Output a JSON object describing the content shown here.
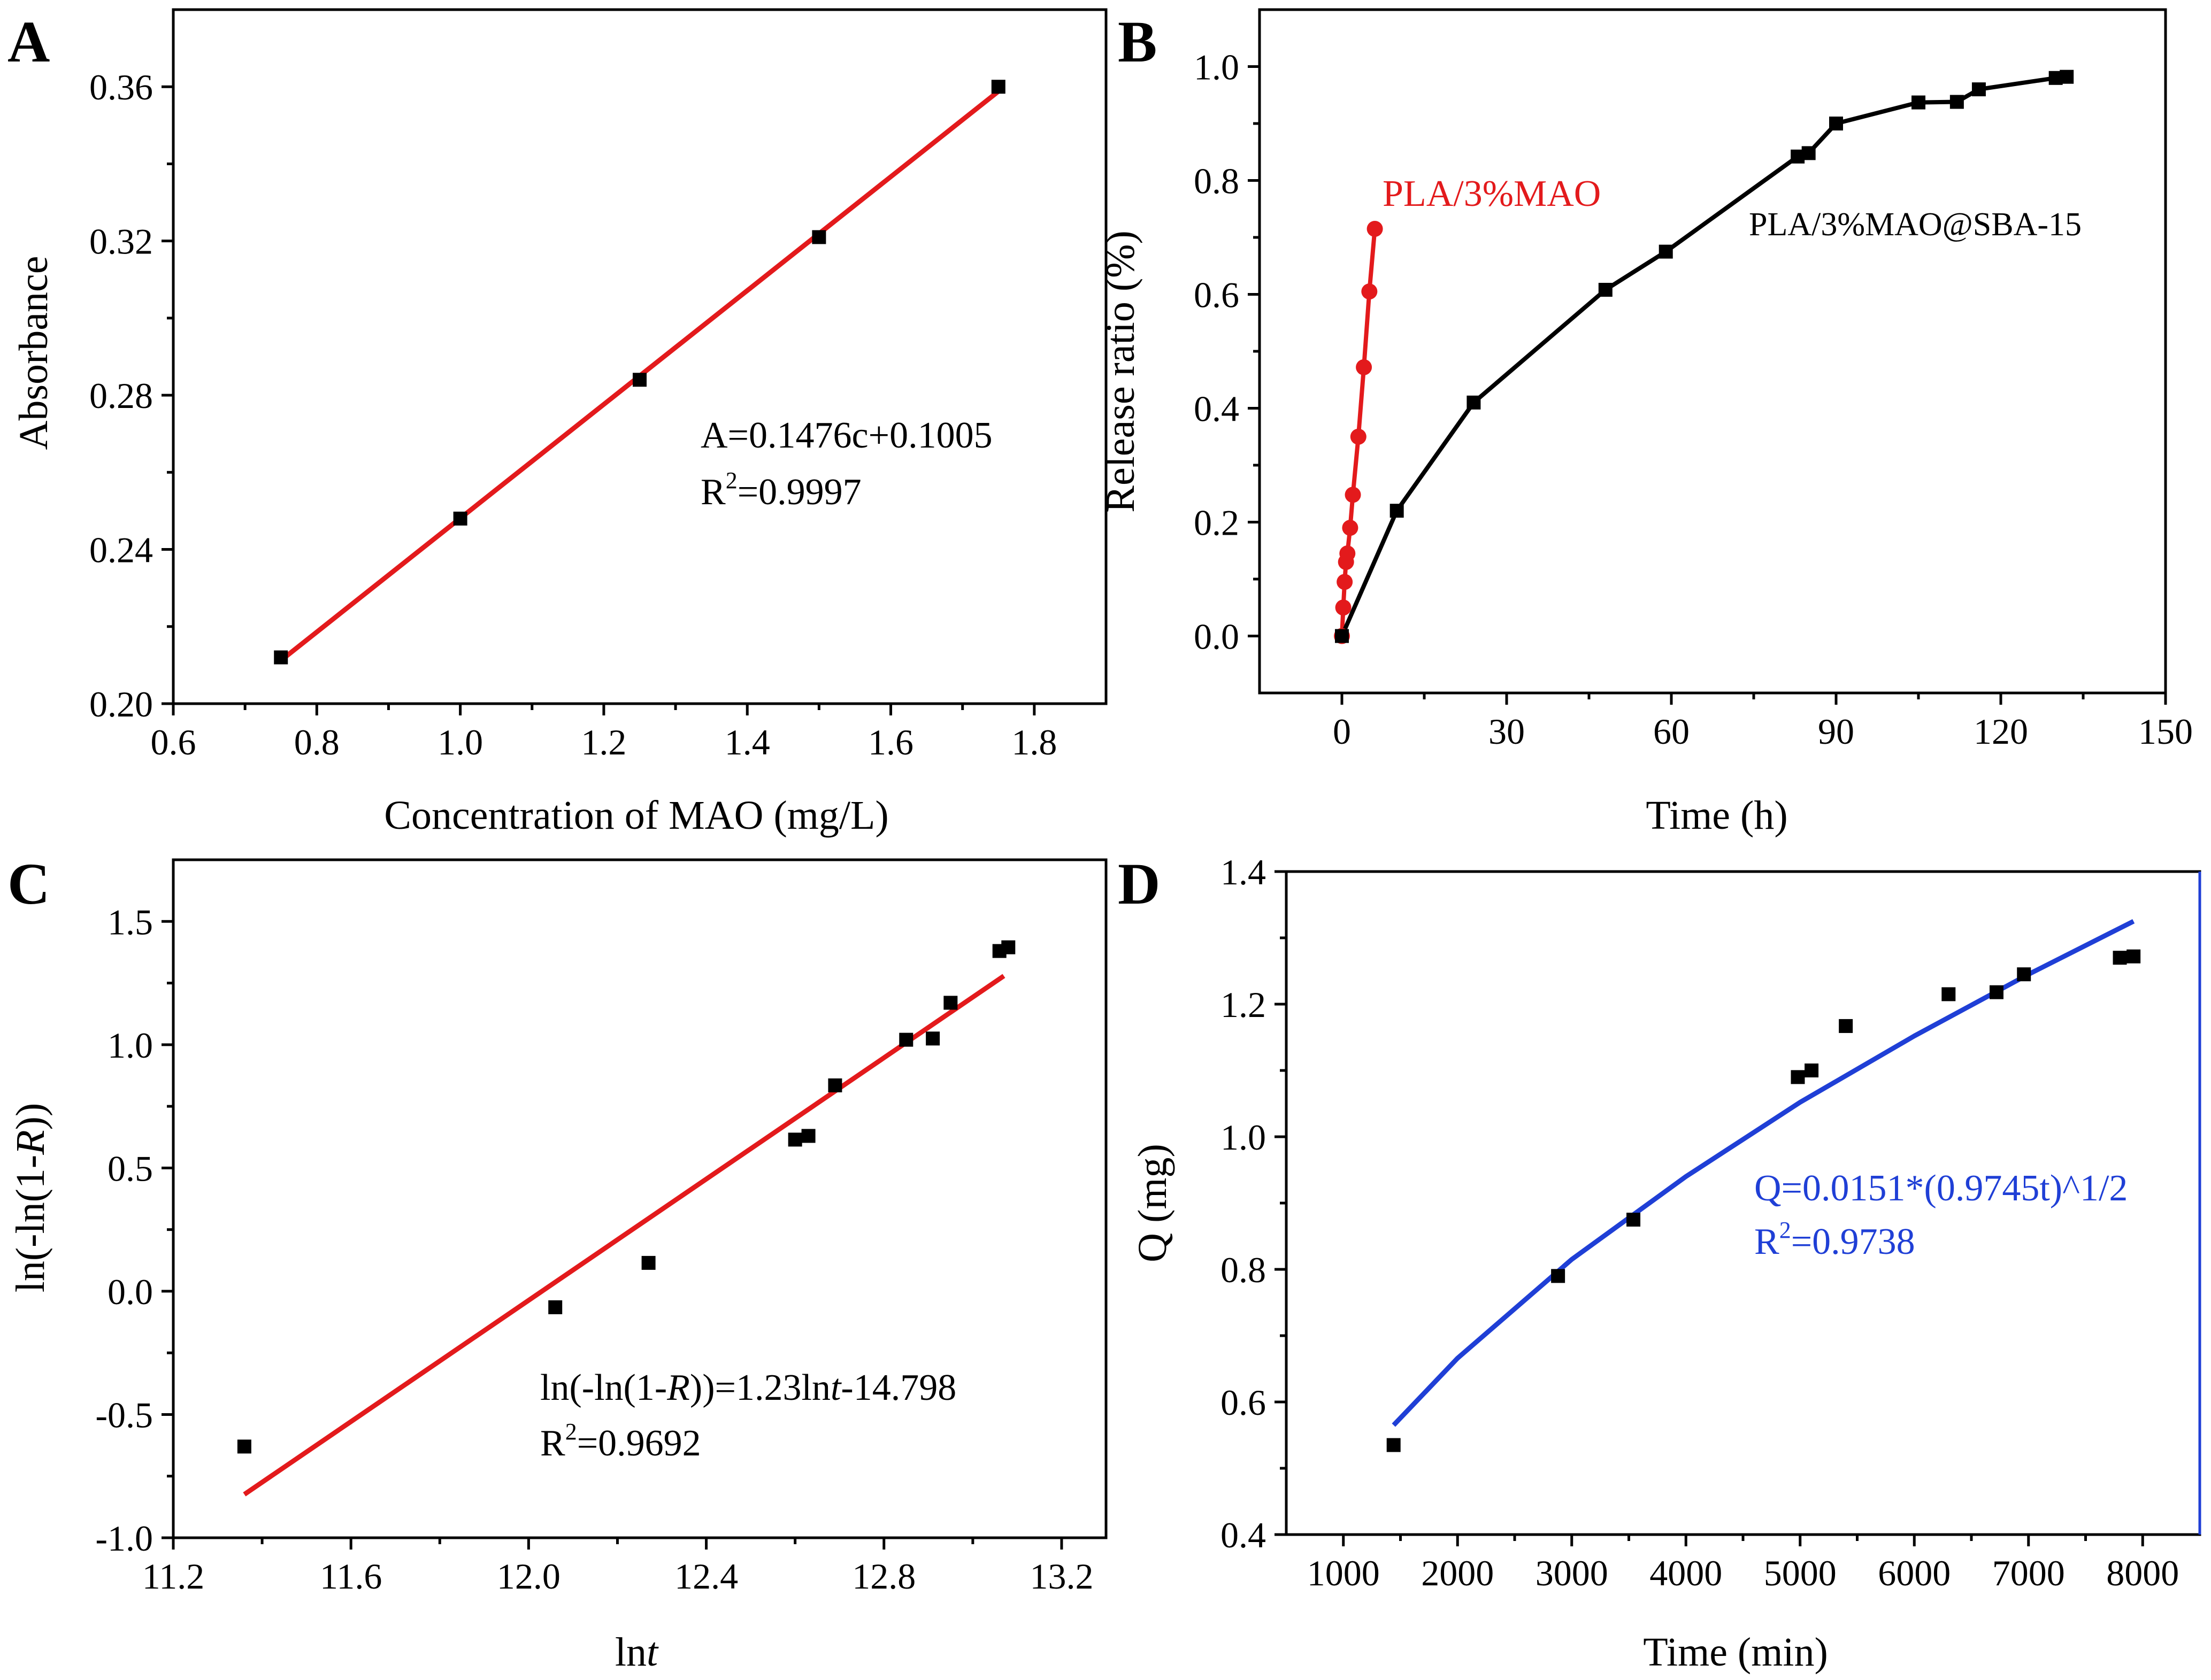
{
  "chart_data": [
    {
      "panel": "A",
      "type": "scatter",
      "xlabel": "Concentration of MAO (mg/L)",
      "ylabel": "Absorbance",
      "xlim": [
        0.6,
        1.9
      ],
      "ylim": [
        0.2,
        0.38
      ],
      "xticks": [
        0.6,
        0.8,
        1.0,
        1.2,
        1.4,
        1.6,
        1.8
      ],
      "xtick_labels": [
        "0.6",
        "0.8",
        "1.0",
        "1.2",
        "1.4",
        "1.6",
        "1.8"
      ],
      "yticks": [
        0.2,
        0.24,
        0.28,
        0.32,
        0.36
      ],
      "ytick_labels": [
        "0.20",
        "0.24",
        "0.28",
        "0.32",
        "0.36"
      ],
      "series": [
        {
          "name": "data",
          "style": "square",
          "color": "#000000",
          "x": [
            0.75,
            1.0,
            1.25,
            1.5,
            1.75
          ],
          "y": [
            0.212,
            0.248,
            0.284,
            0.321,
            0.36
          ]
        },
        {
          "name": "fit",
          "style": "line",
          "color": "#e31a1c",
          "x": [
            0.75,
            1.75
          ],
          "y": [
            0.2112,
            0.3588
          ]
        }
      ],
      "annotations": [
        "A=0.1476c+0.1005",
        "R",
        "2",
        "=0.9997"
      ]
    },
    {
      "panel": "B",
      "type": "line",
      "xlabel": "Time (h)",
      "ylabel": "Release ratio (%)",
      "xlim": [
        -15,
        150
      ],
      "ylim": [
        -0.1,
        1.1
      ],
      "xticks": [
        0,
        30,
        60,
        90,
        120,
        150
      ],
      "xtick_labels": [
        "0",
        "30",
        "60",
        "90",
        "120",
        "150"
      ],
      "yticks": [
        0.0,
        0.2,
        0.4,
        0.6,
        0.8,
        1.0
      ],
      "ytick_labels": [
        "0.0",
        "0.2",
        "0.4",
        "0.6",
        "0.8",
        "1.0"
      ],
      "series": [
        {
          "name": "PLA/3%MAO",
          "style": "circle-line",
          "color": "#e31a1c",
          "x": [
            0,
            0.25,
            0.5,
            0.75,
            1.0,
            1.5,
            2,
            3,
            4,
            5,
            6
          ],
          "y": [
            0.0,
            0.05,
            0.095,
            0.13,
            0.145,
            0.19,
            0.248,
            0.35,
            0.472,
            0.605,
            0.715
          ]
        },
        {
          "name": "PLA/3%MAO@SBA-15",
          "style": "square-line",
          "color": "#000000",
          "x": [
            0,
            10,
            24,
            48,
            59,
            83,
            85,
            90,
            105,
            112,
            116,
            130,
            132
          ],
          "y": [
            0.0,
            0.22,
            0.41,
            0.608,
            0.675,
            0.842,
            0.848,
            0.9,
            0.937,
            0.938,
            0.96,
            0.98,
            0.982
          ]
        }
      ],
      "legend": [
        "PLA/3%MAO",
        "PLA/3%MAO@SBA-15"
      ]
    },
    {
      "panel": "C",
      "type": "scatter",
      "xlabel_parts": [
        "ln",
        "t"
      ],
      "ylabel_parts": [
        "ln(-ln(1-",
        "R",
        "))"
      ],
      "xlim": [
        11.2,
        13.3
      ],
      "ylim": [
        -1.0,
        1.75
      ],
      "xticks": [
        11.2,
        11.6,
        12.0,
        12.4,
        12.8,
        13.2
      ],
      "xtick_labels": [
        "11.2",
        "11.6",
        "12.0",
        "12.4",
        "12.8",
        "13.2"
      ],
      "yticks": [
        -1.0,
        -0.5,
        0.0,
        0.5,
        1.0,
        1.5
      ],
      "ytick_labels": [
        "-1.0",
        "-0.5",
        "0.0",
        "0.5",
        "1.0",
        "1.5"
      ],
      "series": [
        {
          "name": "data",
          "style": "square",
          "color": "#000000",
          "x": [
            11.36,
            12.06,
            12.27,
            12.6,
            12.63,
            12.69,
            12.85,
            12.91,
            12.95,
            13.06,
            13.08
          ],
          "y": [
            -0.63,
            -0.065,
            0.115,
            0.615,
            0.63,
            0.835,
            1.02,
            1.025,
            1.17,
            1.38,
            1.395
          ]
        },
        {
          "name": "fit",
          "style": "line",
          "color": "#e31a1c",
          "x": [
            11.36,
            13.07
          ],
          "y": [
            -0.824,
            1.279
          ]
        }
      ],
      "annotations": [
        "ln(-ln(1-",
        "R",
        "))=1.23ln",
        "t",
        "-14.798",
        "R",
        "2",
        "=0.9692"
      ]
    },
    {
      "panel": "D",
      "type": "scatter",
      "xlabel": "Time (min)",
      "ylabel": "Q (mg)",
      "xlim": [
        500,
        8500
      ],
      "ylim": [
        0.4,
        1.4
      ],
      "xticks": [
        1000,
        2000,
        3000,
        4000,
        5000,
        6000,
        7000,
        8000
      ],
      "xtick_labels": [
        "1000",
        "2000",
        "3000",
        "4000",
        "5000",
        "6000",
        "7000",
        "8000"
      ],
      "yticks": [
        0.4,
        0.6,
        0.8,
        1.0,
        1.2,
        1.4
      ],
      "ytick_labels": [
        "0.4",
        "0.6",
        "0.8",
        "1.0",
        "1.2",
        "1.4"
      ],
      "series": [
        {
          "name": "data",
          "style": "square",
          "color": "#000000",
          "x": [
            1440,
            2880,
            3540,
            4980,
            5100,
            5400,
            6300,
            6720,
            6960,
            7800,
            7920
          ],
          "y": [
            0.535,
            0.79,
            0.875,
            1.09,
            1.1,
            1.167,
            1.215,
            1.218,
            1.245,
            1.27,
            1.272
          ]
        },
        {
          "name": "fit",
          "style": "line",
          "color": "#1f3fd6",
          "x": [
            1440,
            2000,
            3000,
            4000,
            5000,
            6000,
            7000,
            7920
          ],
          "y": [
            0.565,
            0.666,
            0.815,
            0.94,
            1.052,
            1.152,
            1.245,
            1.325
          ]
        }
      ],
      "annotations": [
        "Q=0.0151*(0.9745t)^1/2",
        "R",
        "2",
        "=0.9738"
      ]
    }
  ],
  "panel_labels": [
    "A",
    "B",
    "C",
    "D"
  ]
}
